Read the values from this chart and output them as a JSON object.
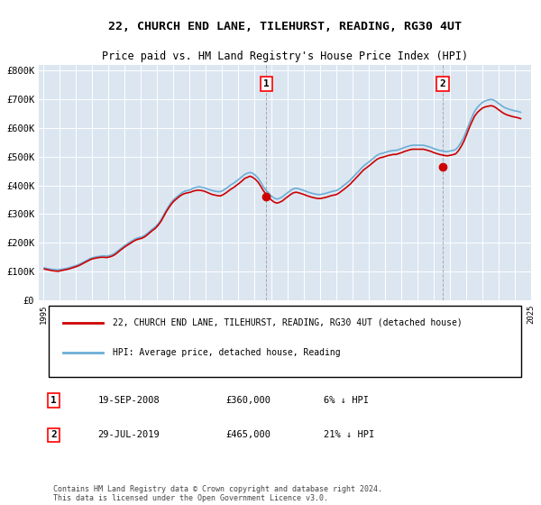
{
  "title": "22, CHURCH END LANE, TILEHURST, READING, RG30 4UT",
  "subtitle": "Price paid vs. HM Land Registry's House Price Index (HPI)",
  "ylabel": "",
  "ylim": [
    0,
    820000
  ],
  "yticks": [
    0,
    100000,
    200000,
    300000,
    400000,
    500000,
    600000,
    700000,
    800000
  ],
  "ytick_labels": [
    "£0",
    "£100K",
    "£200K",
    "£300K",
    "£400K",
    "£500K",
    "£600K",
    "£700K",
    "£800K"
  ],
  "bg_color": "#dce6f1",
  "plot_bg": "#dce6f1",
  "hpi_color": "#6baed6",
  "price_color": "#cc0000",
  "sale1_date": 2008.72,
  "sale1_price": 360000,
  "sale2_date": 2019.57,
  "sale2_price": 465000,
  "legend_label1": "22, CHURCH END LANE, TILEHURST, READING, RG30 4UT (detached house)",
  "legend_label2": "HPI: Average price, detached house, Reading",
  "annotation1_label": "1",
  "annotation2_label": "2",
  "table_row1": "1    19-SEP-2008         £360,000       6% ↓ HPI",
  "table_row2": "2    29-JUL-2019         £465,000       21% ↓ HPI",
  "footnote": "Contains HM Land Registry data © Crown copyright and database right 2024.\nThis data is licensed under the Open Government Licence v3.0.",
  "hpi_data": {
    "years": [
      1995.04,
      1995.21,
      1995.38,
      1995.54,
      1995.71,
      1995.88,
      1996.04,
      1996.21,
      1996.38,
      1996.54,
      1996.71,
      1996.88,
      1997.04,
      1997.21,
      1997.38,
      1997.54,
      1997.71,
      1997.88,
      1998.04,
      1998.21,
      1998.38,
      1998.54,
      1998.71,
      1998.88,
      1999.04,
      1999.21,
      1999.38,
      1999.54,
      1999.71,
      1999.88,
      2000.04,
      2000.21,
      2000.38,
      2000.54,
      2000.71,
      2000.88,
      2001.04,
      2001.21,
      2001.38,
      2001.54,
      2001.71,
      2001.88,
      2002.04,
      2002.21,
      2002.38,
      2002.54,
      2002.71,
      2002.88,
      2003.04,
      2003.21,
      2003.38,
      2003.54,
      2003.71,
      2003.88,
      2004.04,
      2004.21,
      2004.38,
      2004.54,
      2004.71,
      2004.88,
      2005.04,
      2005.21,
      2005.38,
      2005.54,
      2005.71,
      2005.88,
      2006.04,
      2006.21,
      2006.38,
      2006.54,
      2006.71,
      2006.88,
      2007.04,
      2007.21,
      2007.38,
      2007.54,
      2007.71,
      2007.88,
      2008.04,
      2008.21,
      2008.38,
      2008.54,
      2008.71,
      2008.88,
      2009.04,
      2009.21,
      2009.38,
      2009.54,
      2009.71,
      2009.88,
      2010.04,
      2010.21,
      2010.38,
      2010.54,
      2010.71,
      2010.88,
      2011.04,
      2011.21,
      2011.38,
      2011.54,
      2011.71,
      2011.88,
      2012.04,
      2012.21,
      2012.38,
      2012.54,
      2012.71,
      2012.88,
      2013.04,
      2013.21,
      2013.38,
      2013.54,
      2013.71,
      2013.88,
      2014.04,
      2014.21,
      2014.38,
      2014.54,
      2014.71,
      2014.88,
      2015.04,
      2015.21,
      2015.38,
      2015.54,
      2015.71,
      2015.88,
      2016.04,
      2016.21,
      2016.38,
      2016.54,
      2016.71,
      2016.88,
      2017.04,
      2017.21,
      2017.38,
      2017.54,
      2017.71,
      2017.88,
      2018.04,
      2018.21,
      2018.38,
      2018.54,
      2018.71,
      2018.88,
      2019.04,
      2019.21,
      2019.38,
      2019.54,
      2019.71,
      2019.88,
      2020.04,
      2020.21,
      2020.38,
      2020.54,
      2020.71,
      2020.88,
      2021.04,
      2021.21,
      2021.38,
      2021.54,
      2021.71,
      2021.88,
      2022.04,
      2022.21,
      2022.38,
      2022.54,
      2022.71,
      2022.88,
      2023.04,
      2023.21,
      2023.38,
      2023.54,
      2023.71,
      2023.88,
      2024.04,
      2024.21,
      2024.38
    ],
    "values": [
      112000,
      110000,
      108000,
      107000,
      106000,
      105000,
      107000,
      108000,
      110000,
      112000,
      115000,
      118000,
      121000,
      125000,
      130000,
      135000,
      140000,
      145000,
      148000,
      150000,
      152000,
      153000,
      154000,
      153000,
      155000,
      158000,
      163000,
      170000,
      178000,
      185000,
      192000,
      198000,
      204000,
      210000,
      215000,
      218000,
      220000,
      225000,
      232000,
      240000,
      248000,
      255000,
      265000,
      278000,
      295000,
      312000,
      328000,
      342000,
      352000,
      360000,
      368000,
      375000,
      380000,
      382000,
      385000,
      390000,
      393000,
      395000,
      394000,
      392000,
      388000,
      385000,
      382000,
      380000,
      378000,
      378000,
      382000,
      388000,
      395000,
      402000,
      408000,
      415000,
      422000,
      430000,
      438000,
      442000,
      445000,
      442000,
      435000,
      425000,
      410000,
      395000,
      382000,
      372000,
      362000,
      355000,
      352000,
      355000,
      360000,
      368000,
      375000,
      382000,
      388000,
      390000,
      388000,
      385000,
      382000,
      378000,
      375000,
      372000,
      370000,
      368000,
      368000,
      370000,
      372000,
      375000,
      378000,
      380000,
      382000,
      388000,
      395000,
      402000,
      410000,
      418000,
      428000,
      438000,
      448000,
      458000,
      468000,
      475000,
      482000,
      490000,
      498000,
      505000,
      510000,
      512000,
      515000,
      518000,
      520000,
      522000,
      522000,
      525000,
      528000,
      532000,
      535000,
      538000,
      540000,
      540000,
      540000,
      540000,
      540000,
      538000,
      535000,
      532000,
      528000,
      525000,
      522000,
      520000,
      518000,
      518000,
      520000,
      522000,
      525000,
      535000,
      550000,
      568000,
      590000,
      615000,
      638000,
      658000,
      672000,
      682000,
      690000,
      695000,
      698000,
      700000,
      698000,
      692000,
      685000,
      678000,
      672000,
      668000,
      665000,
      662000,
      660000,
      658000,
      655000
    ]
  },
  "price_data": {
    "years": [
      1995.04,
      1995.21,
      1995.38,
      1995.54,
      1995.71,
      1995.88,
      1996.04,
      1996.21,
      1996.38,
      1996.54,
      1996.71,
      1996.88,
      1997.04,
      1997.21,
      1997.38,
      1997.54,
      1997.71,
      1997.88,
      1998.04,
      1998.21,
      1998.38,
      1998.54,
      1998.71,
      1998.88,
      1999.04,
      1999.21,
      1999.38,
      1999.54,
      1999.71,
      1999.88,
      2000.04,
      2000.21,
      2000.38,
      2000.54,
      2000.71,
      2000.88,
      2001.04,
      2001.21,
      2001.38,
      2001.54,
      2001.71,
      2001.88,
      2002.04,
      2002.21,
      2002.38,
      2002.54,
      2002.71,
      2002.88,
      2003.04,
      2003.21,
      2003.38,
      2003.54,
      2003.71,
      2003.88,
      2004.04,
      2004.21,
      2004.38,
      2004.54,
      2004.71,
      2004.88,
      2005.04,
      2005.21,
      2005.38,
      2005.54,
      2005.71,
      2005.88,
      2006.04,
      2006.21,
      2006.38,
      2006.54,
      2006.71,
      2006.88,
      2007.04,
      2007.21,
      2007.38,
      2007.54,
      2007.71,
      2007.88,
      2008.04,
      2008.21,
      2008.38,
      2008.54,
      2008.71,
      2008.88,
      2009.04,
      2009.21,
      2009.38,
      2009.54,
      2009.71,
      2009.88,
      2010.04,
      2010.21,
      2010.38,
      2010.54,
      2010.71,
      2010.88,
      2011.04,
      2011.21,
      2011.38,
      2011.54,
      2011.71,
      2011.88,
      2012.04,
      2012.21,
      2012.38,
      2012.54,
      2012.71,
      2012.88,
      2013.04,
      2013.21,
      2013.38,
      2013.54,
      2013.71,
      2013.88,
      2014.04,
      2014.21,
      2014.38,
      2014.54,
      2014.71,
      2014.88,
      2015.04,
      2015.21,
      2015.38,
      2015.54,
      2015.71,
      2015.88,
      2016.04,
      2016.21,
      2016.38,
      2016.54,
      2016.71,
      2016.88,
      2017.04,
      2017.21,
      2017.38,
      2017.54,
      2017.71,
      2017.88,
      2018.04,
      2018.21,
      2018.38,
      2018.54,
      2018.71,
      2018.88,
      2019.04,
      2019.21,
      2019.38,
      2019.54,
      2019.71,
      2019.88,
      2020.04,
      2020.21,
      2020.38,
      2020.54,
      2020.71,
      2020.88,
      2021.04,
      2021.21,
      2021.38,
      2021.54,
      2021.71,
      2021.88,
      2022.04,
      2022.21,
      2022.38,
      2022.54,
      2022.71,
      2022.88,
      2023.04,
      2023.21,
      2023.38,
      2023.54,
      2023.71,
      2023.88,
      2024.04,
      2024.21,
      2024.38
    ],
    "values": [
      108000,
      106000,
      104000,
      102000,
      101000,
      100000,
      102000,
      104000,
      106000,
      108000,
      111000,
      114000,
      117000,
      121000,
      126000,
      131000,
      136000,
      141000,
      144000,
      146000,
      148000,
      149000,
      149000,
      148000,
      150000,
      153000,
      158000,
      165000,
      173000,
      180000,
      187000,
      193000,
      199000,
      205000,
      210000,
      213000,
      215000,
      220000,
      227000,
      235000,
      243000,
      250000,
      260000,
      273000,
      290000,
      307000,
      322000,
      336000,
      346000,
      354000,
      362000,
      368000,
      372000,
      374000,
      376000,
      380000,
      382000,
      383000,
      382000,
      380000,
      376000,
      372000,
      368000,
      366000,
      364000,
      363000,
      367000,
      373000,
      380000,
      387000,
      393000,
      400000,
      407000,
      415000,
      424000,
      428000,
      432000,
      428000,
      421000,
      411000,
      396000,
      381000,
      368000,
      358000,
      348000,
      341000,
      338000,
      341000,
      346000,
      354000,
      361000,
      368000,
      374000,
      376000,
      374000,
      371000,
      368000,
      364000,
      361000,
      358000,
      356000,
      354000,
      354000,
      356000,
      358000,
      361000,
      364000,
      366000,
      368000,
      374000,
      381000,
      388000,
      396000,
      404000,
      414000,
      424000,
      434000,
      444000,
      454000,
      461000,
      468000,
      476000,
      484000,
      491000,
      496000,
      498000,
      501000,
      504000,
      506000,
      508000,
      508000,
      511000,
      514000,
      518000,
      521000,
      524000,
      526000,
      526000,
      526000,
      526000,
      526000,
      524000,
      521000,
      518000,
      514000,
      511000,
      508000,
      506000,
      504000,
      503000,
      505000,
      507000,
      510000,
      520000,
      535000,
      553000,
      575000,
      600000,
      622000,
      641000,
      654000,
      663000,
      670000,
      674000,
      676000,
      678000,
      676000,
      670000,
      663000,
      656000,
      650000,
      646000,
      643000,
      640000,
      638000,
      636000,
      633000
    ]
  }
}
